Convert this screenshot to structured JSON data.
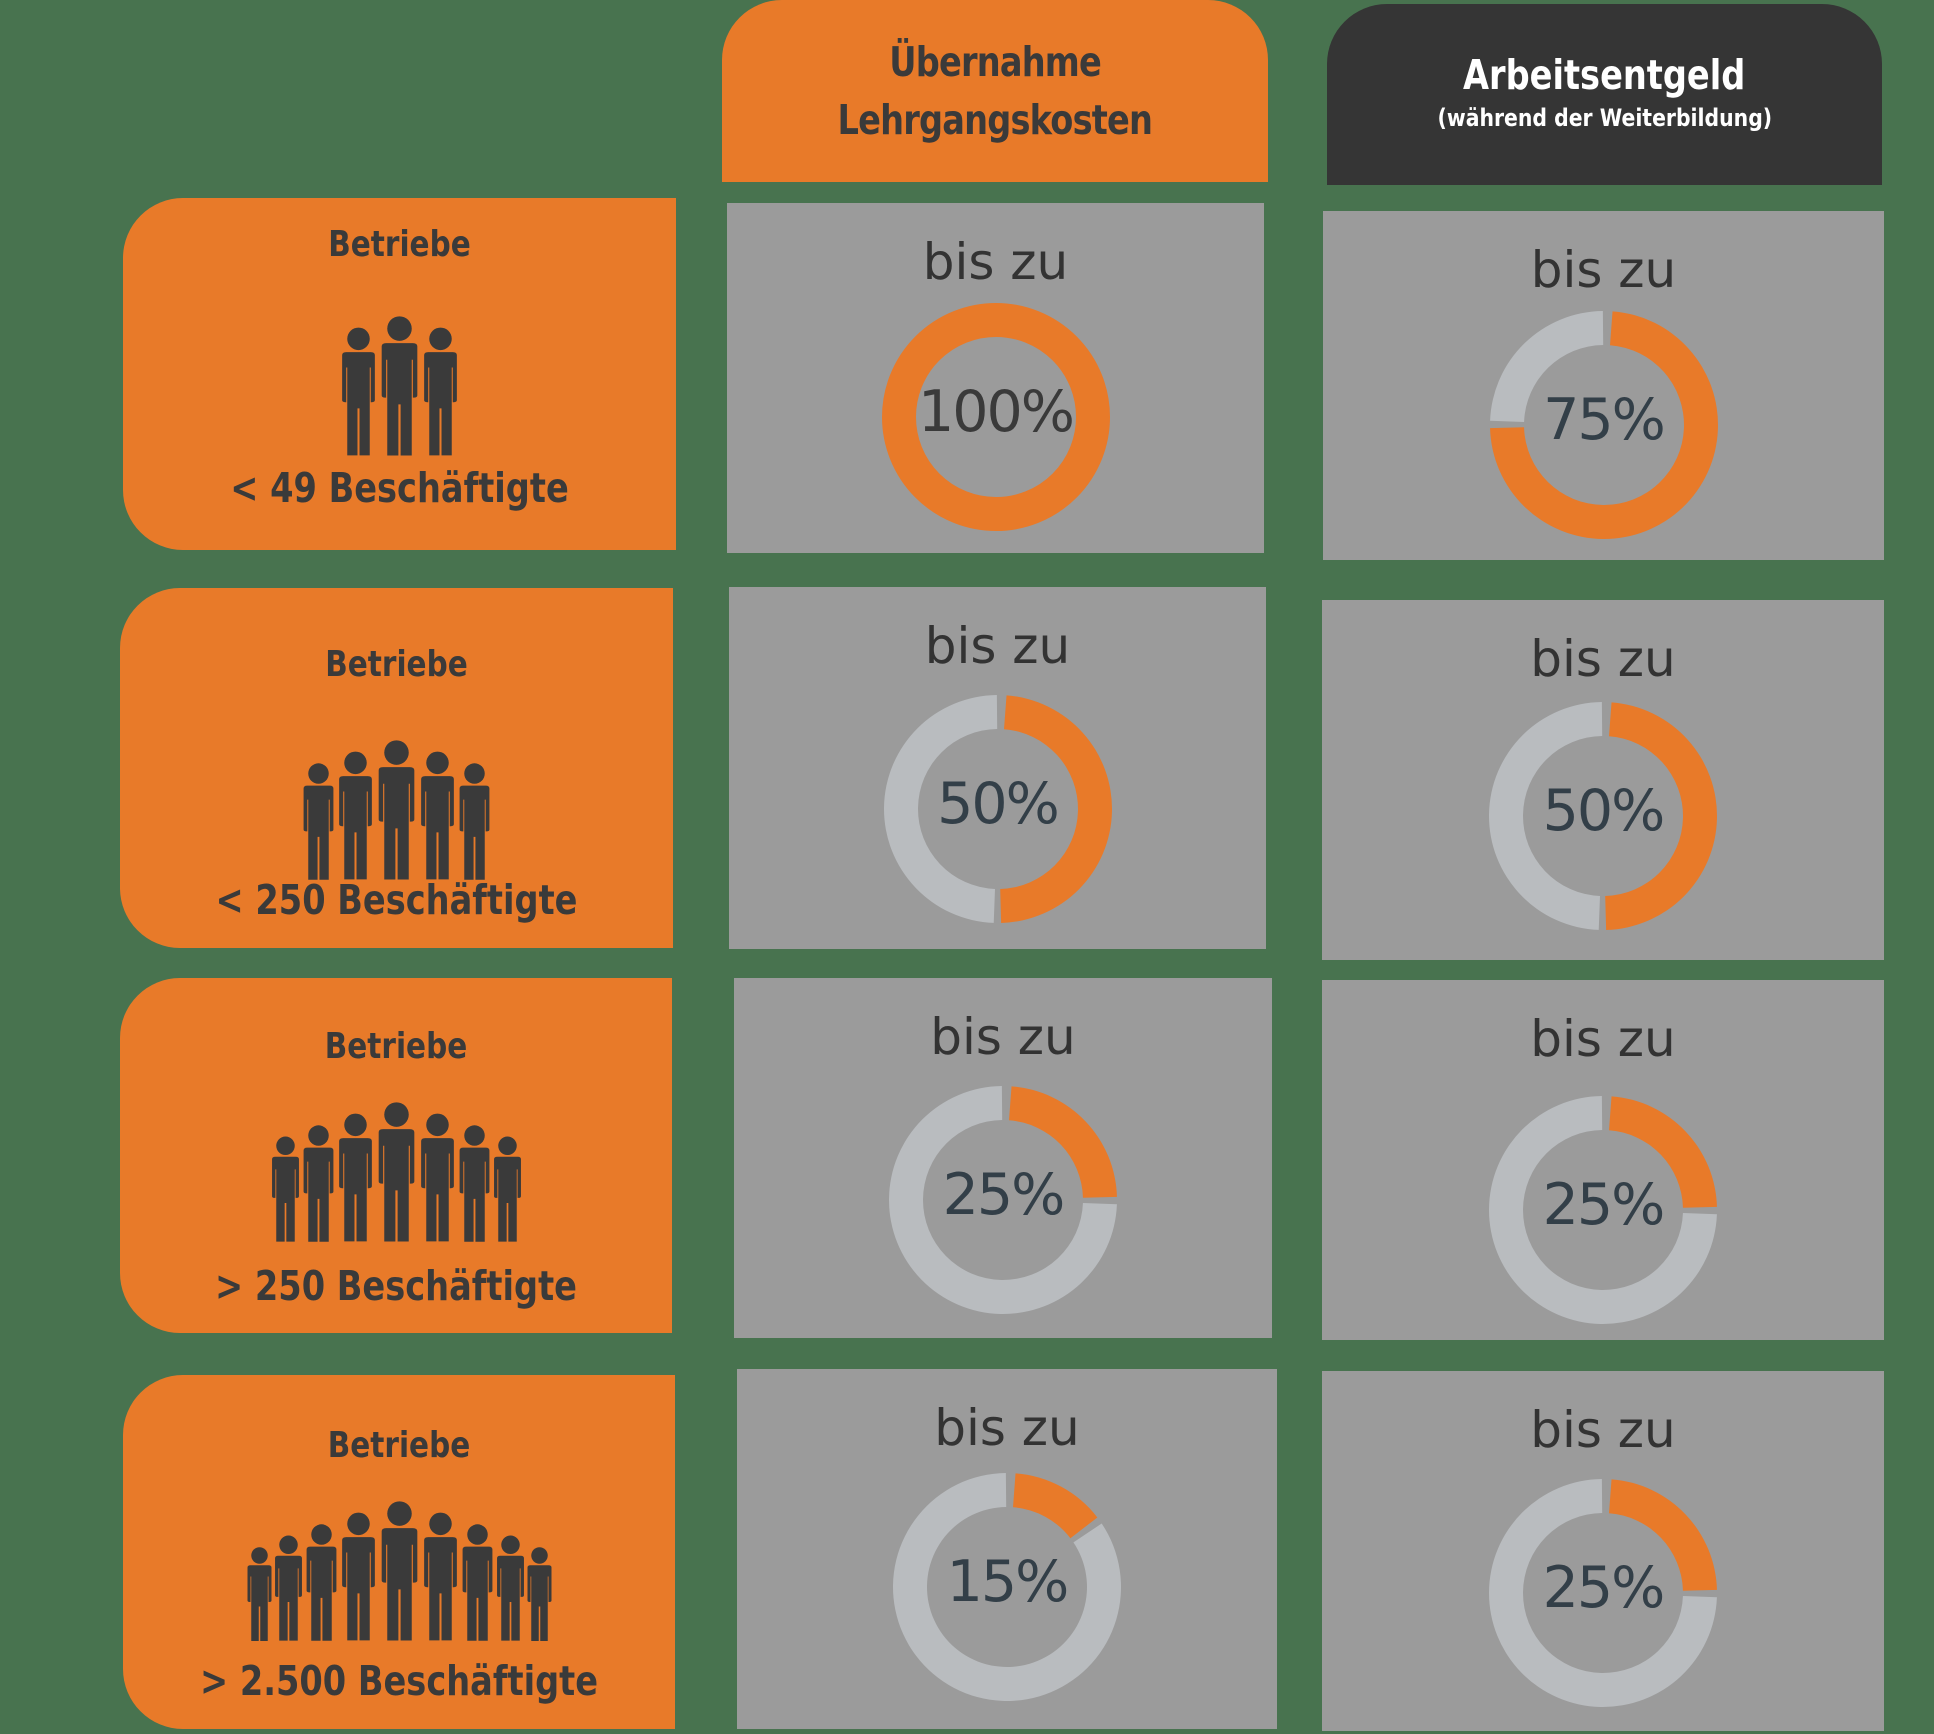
{
  "headers": {
    "col1": {
      "line1": "Übernahme",
      "line2": "Lehrgangskosten",
      "bg": "#e87a29"
    },
    "col2": {
      "title": "Arbeitsentgeld",
      "subtitle": "(während der Weiterbildung)",
      "bg": "#353535"
    }
  },
  "rows": [
    {
      "label_top": "Betriebe",
      "label_bottom": "< 49 Beschäftigte",
      "people_count": 3,
      "col1": {
        "prefix": "bis zu",
        "value_label": "100%",
        "value": 100
      },
      "col2": {
        "prefix": "bis zu",
        "value_label": "75%",
        "value": 75
      }
    },
    {
      "label_top": "Betriebe",
      "label_bottom": "< 250 Beschäftigte",
      "people_count": 5,
      "col1": {
        "prefix": "bis zu",
        "value_label": "50%",
        "value": 50
      },
      "col2": {
        "prefix": "bis zu",
        "value_label": "50%",
        "value": 50
      }
    },
    {
      "label_top": "Betriebe",
      "label_bottom": "> 250 Beschäftigte",
      "people_count": 7,
      "col1": {
        "prefix": "bis zu",
        "value_label": "25%",
        "value": 25
      },
      "col2": {
        "prefix": "bis zu",
        "value_label": "25%",
        "value": 25
      }
    },
    {
      "label_top": "Betriebe",
      "label_bottom": "> 2.500 Beschäftigte",
      "people_count": 9,
      "col1": {
        "prefix": "bis zu",
        "value_label": "15%",
        "value": 15
      },
      "col2": {
        "prefix": "bis zu",
        "value_label": "25%",
        "value": 25
      }
    }
  ],
  "colors": {
    "background": "#48734f",
    "accent_orange": "#e87a29",
    "header_dark": "#353535",
    "cell_gray": "#9b9b9b",
    "donut_track": "#b9bcbf",
    "text_dark": "#3a3a3a",
    "pct_text": "#333f48"
  },
  "chart_data": {
    "type": "donut-table",
    "title": "",
    "categories": [
      "< 49 Beschäftigte",
      "< 250 Beschäftigte",
      "> 250 Beschäftigte",
      "> 2.500 Beschäftigte"
    ],
    "series": [
      {
        "name": "Übernahme Lehrgangskosten",
        "values": [
          100,
          50,
          25,
          15
        ]
      },
      {
        "name": "Arbeitsentgeld (während der Weiterbildung)",
        "values": [
          75,
          50,
          25,
          25
        ]
      }
    ],
    "value_prefix": "bis zu",
    "unit": "%",
    "ylim": [
      0,
      100
    ]
  }
}
